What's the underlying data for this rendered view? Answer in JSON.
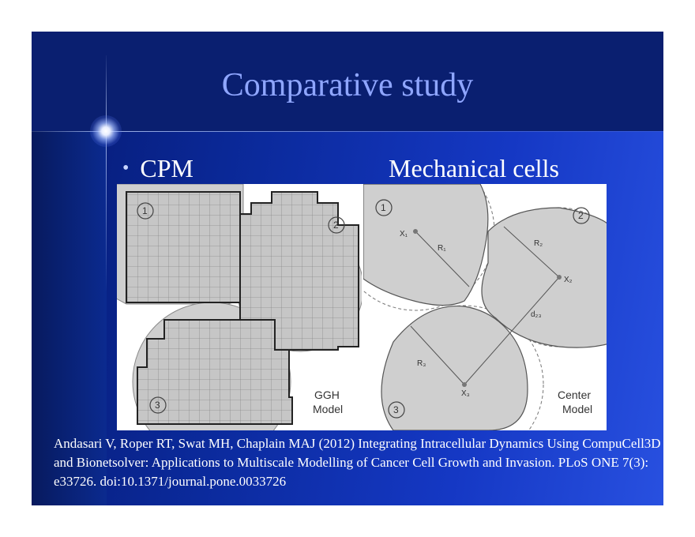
{
  "slide": {
    "title": "Comparative study",
    "bullet_text": "CPM",
    "second_heading": "Mechanical cells",
    "citation": "Andasari V, Roper RT, Swat MH, Chaplain MAJ (2012) Integrating Intracellular Dynamics Using CompuCell3D and Bionetsolver: Applications to Multiscale Modelling of Cancer Cell Growth and Invasion. PLoS ONE 7(3): e33726. doi:10.1371/journal.pone.0033726"
  },
  "figure": {
    "ggh_labels": {
      "cell1": "1",
      "cell2": "2",
      "cell3": "3",
      "model_line1": "GGH",
      "model_line2": "Model"
    },
    "center_labels": {
      "cell1": "1",
      "cell2": "2",
      "cell3": "3",
      "x1": "X₁",
      "x2": "X₂",
      "x3": "X₃",
      "r1": "R₁",
      "r2": "R₂",
      "r3": "R₃",
      "d23": "d₂₃",
      "model_line1": "Center",
      "model_line2": "Model"
    }
  }
}
